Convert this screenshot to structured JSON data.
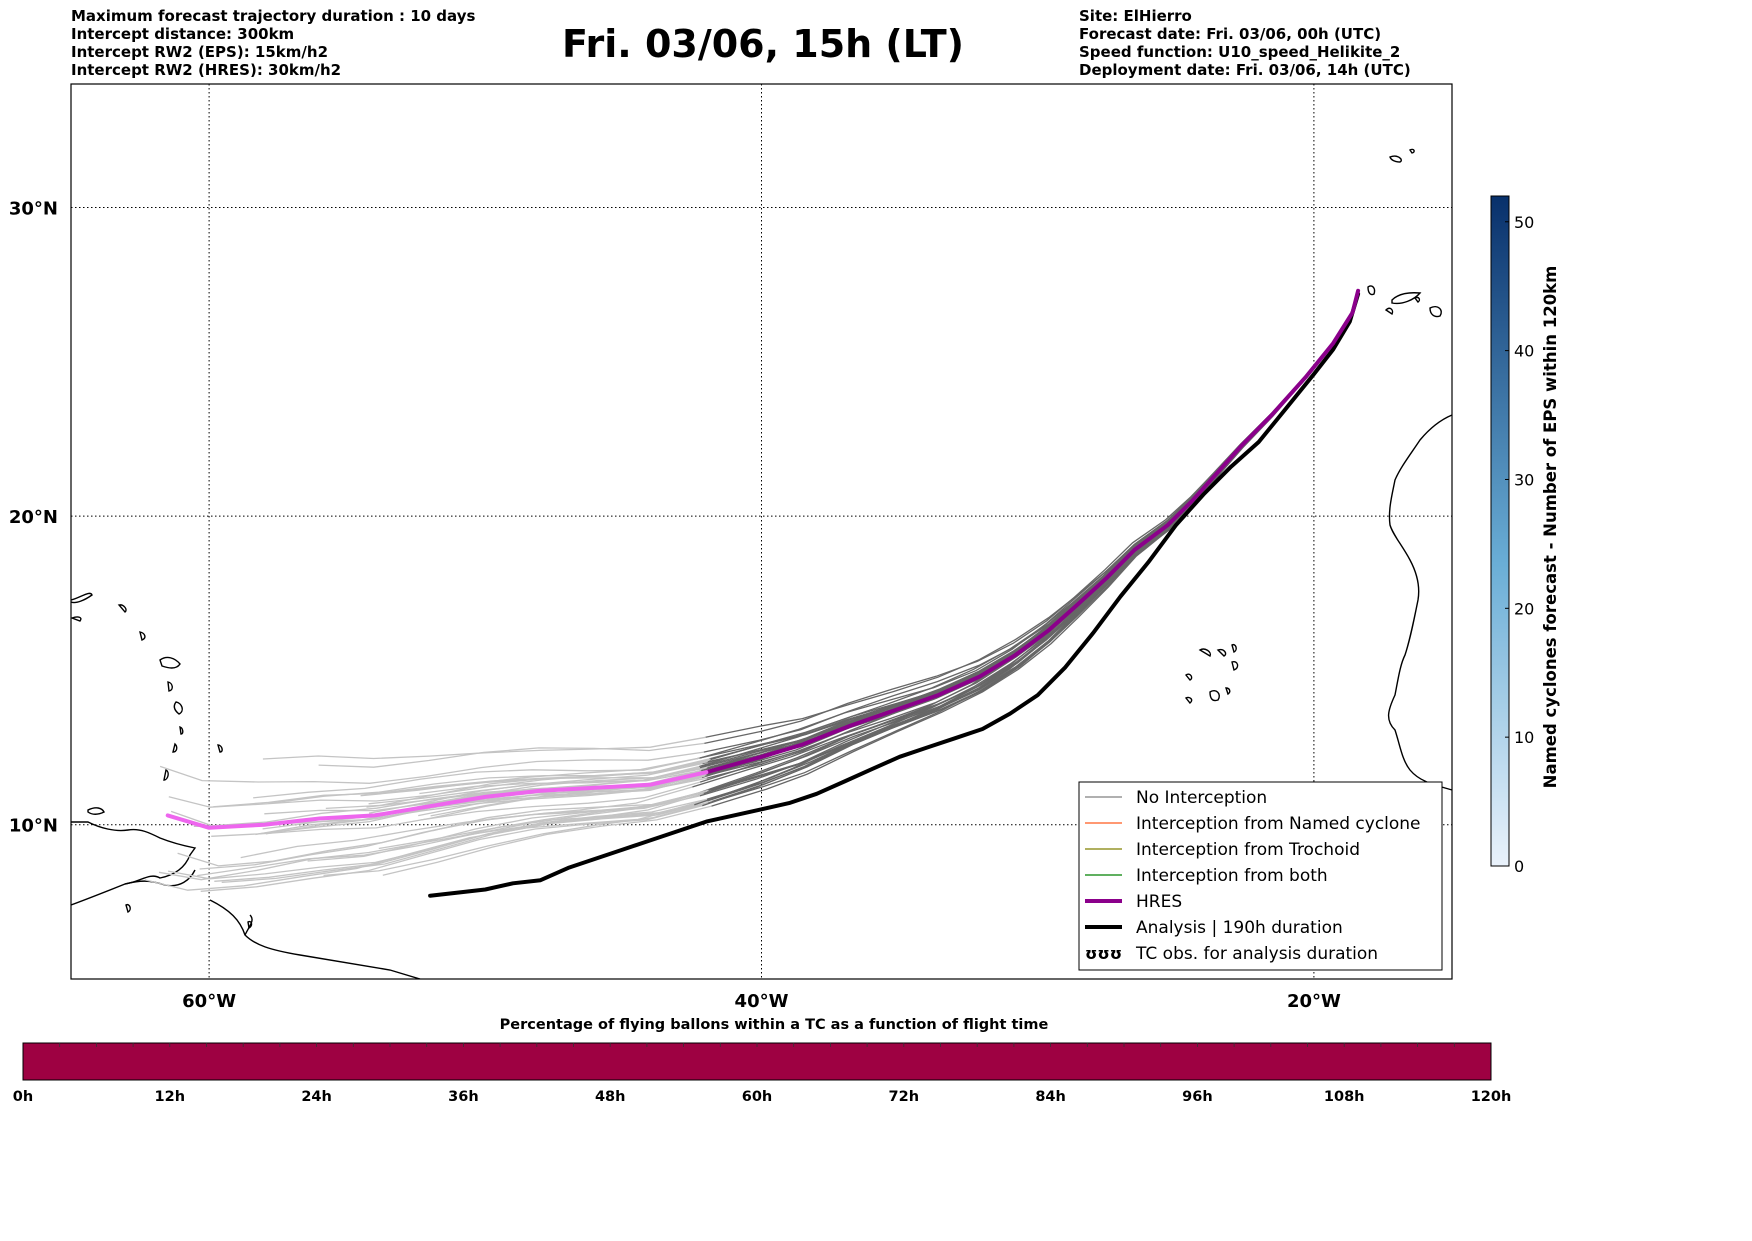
{
  "header": {
    "title": "Fri. 03/06, 15h (LT)",
    "left_lines": [
      "Maximum forecast trajectory duration : 10 days",
      "Intercept distance: 300km",
      "Intercept RW2 (EPS):  15km/h2",
      "Intercept RW2 (HRES): 30km/h2"
    ],
    "right_lines": [
      "Site: ElHierro",
      "Forecast date: Fri. 03/06, 00h (UTC)",
      "Speed function: U10_speed_Helikite_2",
      "Deployment date: Fri. 03/06, 14h (UTC)"
    ]
  },
  "chart_data": [
    {
      "type": "line",
      "map": true,
      "xlim": [
        -65,
        -15
      ],
      "ylim": [
        5,
        34
      ],
      "x_ticks": [
        {
          "value": -60,
          "label": "60°W"
        },
        {
          "value": -40,
          "label": "40°W"
        },
        {
          "value": -20,
          "label": "20°W"
        }
      ],
      "y_ticks": [
        {
          "value": 10,
          "label": "10°N"
        },
        {
          "value": 20,
          "label": "20°N"
        },
        {
          "value": 30,
          "label": "30°N"
        }
      ],
      "grid": true,
      "legend_position": "lower-right",
      "legend": [
        {
          "label": "No Interception",
          "color": "#808080",
          "style": "thin"
        },
        {
          "label": "Interception from Named cyclone",
          "color": "#ff5a1f",
          "style": "thin"
        },
        {
          "label": "Interception from Trochoid",
          "color": "#808000",
          "style": "thin"
        },
        {
          "label": "Interception from both",
          "color": "#008000",
          "style": "thin"
        },
        {
          "label": "HRES",
          "color": "#8b008b",
          "style": "thick"
        },
        {
          "label": "Analysis | 190h duration",
          "color": "#000000",
          "style": "thick"
        },
        {
          "label": "TC obs. for analysis duration",
          "color": "#000000",
          "style": "symbol",
          "symbol": "ʊʊʊ"
        }
      ],
      "series": [
        {
          "name": "HRES",
          "color_late": "#ee66ee",
          "color_early": "#8b008b",
          "late_before_lon": -41,
          "x": [
            -18.4,
            -18.6,
            -19.3,
            -20.3,
            -21.5,
            -22.6,
            -23.6,
            -24.4,
            -25.3,
            -26.5,
            -27.5,
            -28.6,
            -29.6,
            -30.8,
            -32.1,
            -33.6,
            -35.2,
            -36.8,
            -38.5,
            -40.0,
            -42.0,
            -44.0,
            -46.0,
            -48.0,
            -50.0,
            -52.0,
            -54.0,
            -56.0,
            -58.0,
            -60.0,
            -61.5
          ],
          "y": [
            27.3,
            26.6,
            25.6,
            24.5,
            23.3,
            22.3,
            21.3,
            20.5,
            19.7,
            18.9,
            18.0,
            17.1,
            16.3,
            15.5,
            14.8,
            14.2,
            13.7,
            13.2,
            12.6,
            12.2,
            11.7,
            11.3,
            11.2,
            11.1,
            10.9,
            10.6,
            10.3,
            10.2,
            10.0,
            9.9,
            10.3
          ]
        },
        {
          "name": "Analysis | 190h duration",
          "color": "#000000",
          "x": [
            -18.4,
            -18.7,
            -19.3,
            -20.0,
            -21.0,
            -22.0,
            -23.0,
            -24.0,
            -25.0,
            -26.0,
            -27.0,
            -28.0,
            -29.0,
            -30.0,
            -31.0,
            -32.0,
            -33.0,
            -34.0,
            -35.0,
            -36.0,
            -37.0,
            -38.0,
            -39.0,
            -40.0,
            -41.0,
            -42.0,
            -43.0,
            -44.0,
            -45.0,
            -46.0,
            -47.0,
            -48.0,
            -49.0,
            -50.0,
            -51.0,
            -52.0
          ],
          "y": [
            27.2,
            26.3,
            25.4,
            24.6,
            23.5,
            22.4,
            21.6,
            20.7,
            19.7,
            18.5,
            17.4,
            16.2,
            15.1,
            14.2,
            13.6,
            13.1,
            12.8,
            12.5,
            12.2,
            11.8,
            11.4,
            11.0,
            10.7,
            10.5,
            10.3,
            10.1,
            9.8,
            9.5,
            9.2,
            8.9,
            8.6,
            8.2,
            8.1,
            7.9,
            7.8,
            7.7
          ]
        }
      ]
    },
    {
      "type": "colorbar",
      "ylabel": "Named cyclones forecast - Number of EPS within 120km",
      "ylim": [
        0,
        52
      ],
      "ticks": [
        0,
        10,
        20,
        30,
        40,
        50
      ],
      "colors": [
        "#eaf2fb",
        "#08306b"
      ]
    },
    {
      "type": "bar",
      "title": "Percentage of flying ballons within a TC as a function of flight time",
      "categories": [
        "0h",
        "12h",
        "24h",
        "36h",
        "48h",
        "60h",
        "72h",
        "84h",
        "96h",
        "108h",
        "120h"
      ],
      "fill_color": "#9e0142",
      "value": 0
    }
  ]
}
